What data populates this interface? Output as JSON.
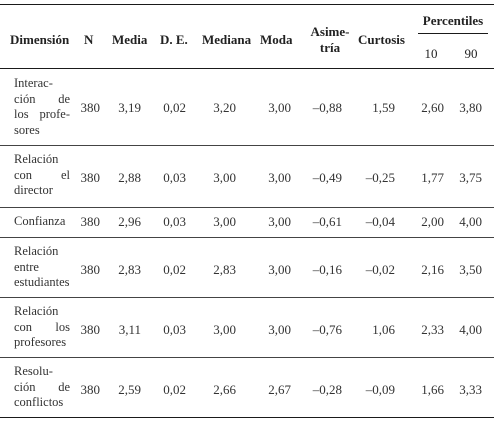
{
  "header": {
    "dimension": "Dimensión",
    "n": "N",
    "media": "Media",
    "de": "D. E.",
    "mediana": "Mediana",
    "moda": "Moda",
    "asimetria_1": "Asime-",
    "asimetria_2": "tría",
    "curtosis": "Curtosis",
    "percentiles": "Percentiles",
    "p10": "10",
    "p90": "90"
  },
  "rows": [
    {
      "dimension_lines": [
        "Interac-",
        "ción de",
        "los profe-",
        "sores"
      ],
      "n": "380",
      "media": "3,19",
      "de": "0,02",
      "mediana": "3,20",
      "moda": "3,00",
      "asimetria": "–0,88",
      "curtosis": "1,59",
      "p10": "2,60",
      "p90": "3,80"
    },
    {
      "dimension_lines": [
        "Relación",
        "con el",
        "director"
      ],
      "n": "380",
      "media": "2,88",
      "de": "0,03",
      "mediana": "3,00",
      "moda": "3,00",
      "asimetria": "–0,49",
      "curtosis": "–0,25",
      "p10": "1,77",
      "p90": "3,75"
    },
    {
      "dimension_lines": [
        "Confianza"
      ],
      "n": "380",
      "media": "2,96",
      "de": "0,03",
      "mediana": "3,00",
      "moda": "3,00",
      "asimetria": "–0,61",
      "curtosis": "–0,04",
      "p10": "2,00",
      "p90": "4,00"
    },
    {
      "dimension_lines": [
        "Relación",
        "entre",
        "estudiantes"
      ],
      "n": "380",
      "media": "2,83",
      "de": "0,02",
      "mediana": "2,83",
      "moda": "3,00",
      "asimetria": "–0,16",
      "curtosis": "–0,02",
      "p10": "2,16",
      "p90": "3,50"
    },
    {
      "dimension_lines": [
        "Relación",
        "con los",
        "profesores"
      ],
      "n": "380",
      "media": "3,11",
      "de": "0,03",
      "mediana": "3,00",
      "moda": "3,00",
      "asimetria": "–0,76",
      "curtosis": "1,06",
      "p10": "2,33",
      "p90": "4,00"
    },
    {
      "dimension_lines": [
        "Resolu-",
        "ción de",
        "conflictos"
      ],
      "n": "380",
      "media": "2,59",
      "de": "0,02",
      "mediana": "2,66",
      "moda": "2,67",
      "asimetria": "–0,28",
      "curtosis": "–0,09",
      "p10": "1,66",
      "p90": "3,33"
    }
  ]
}
